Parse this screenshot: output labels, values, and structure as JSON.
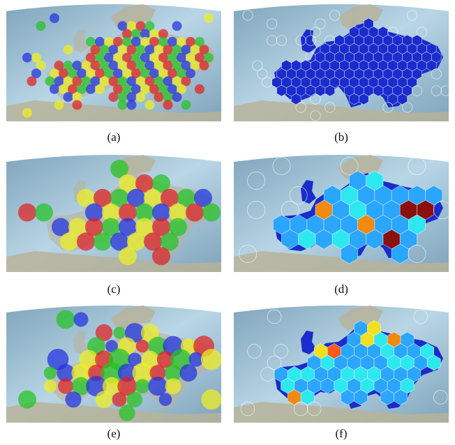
{
  "figure": {
    "panels": [
      {
        "id": "a",
        "caption": "(a)",
        "style": "circles",
        "scale": "small"
      },
      {
        "id": "b",
        "caption": "(b)",
        "style": "hexmap",
        "scale": "small"
      },
      {
        "id": "c",
        "caption": "(c)",
        "style": "circles",
        "scale": "large"
      },
      {
        "id": "d",
        "caption": "(d)",
        "style": "hexmap",
        "scale": "large"
      },
      {
        "id": "e",
        "caption": "(e)",
        "style": "circles",
        "scale": "mixed"
      },
      {
        "id": "f",
        "caption": "(f)",
        "style": "hexmap",
        "scale": "mixed"
      }
    ],
    "colors": {
      "ocean_light": "#b9d6e6",
      "ocean_dark": "#7fa4bb",
      "land": "#b7b39a",
      "circle_palette": [
        "#e02020",
        "#22c422",
        "#2030e0",
        "#f0f020"
      ],
      "heat_low": "#1a2ccc",
      "heat_mid": "#2aa6ff",
      "heat_high": "#8b0f0f"
    }
  }
}
